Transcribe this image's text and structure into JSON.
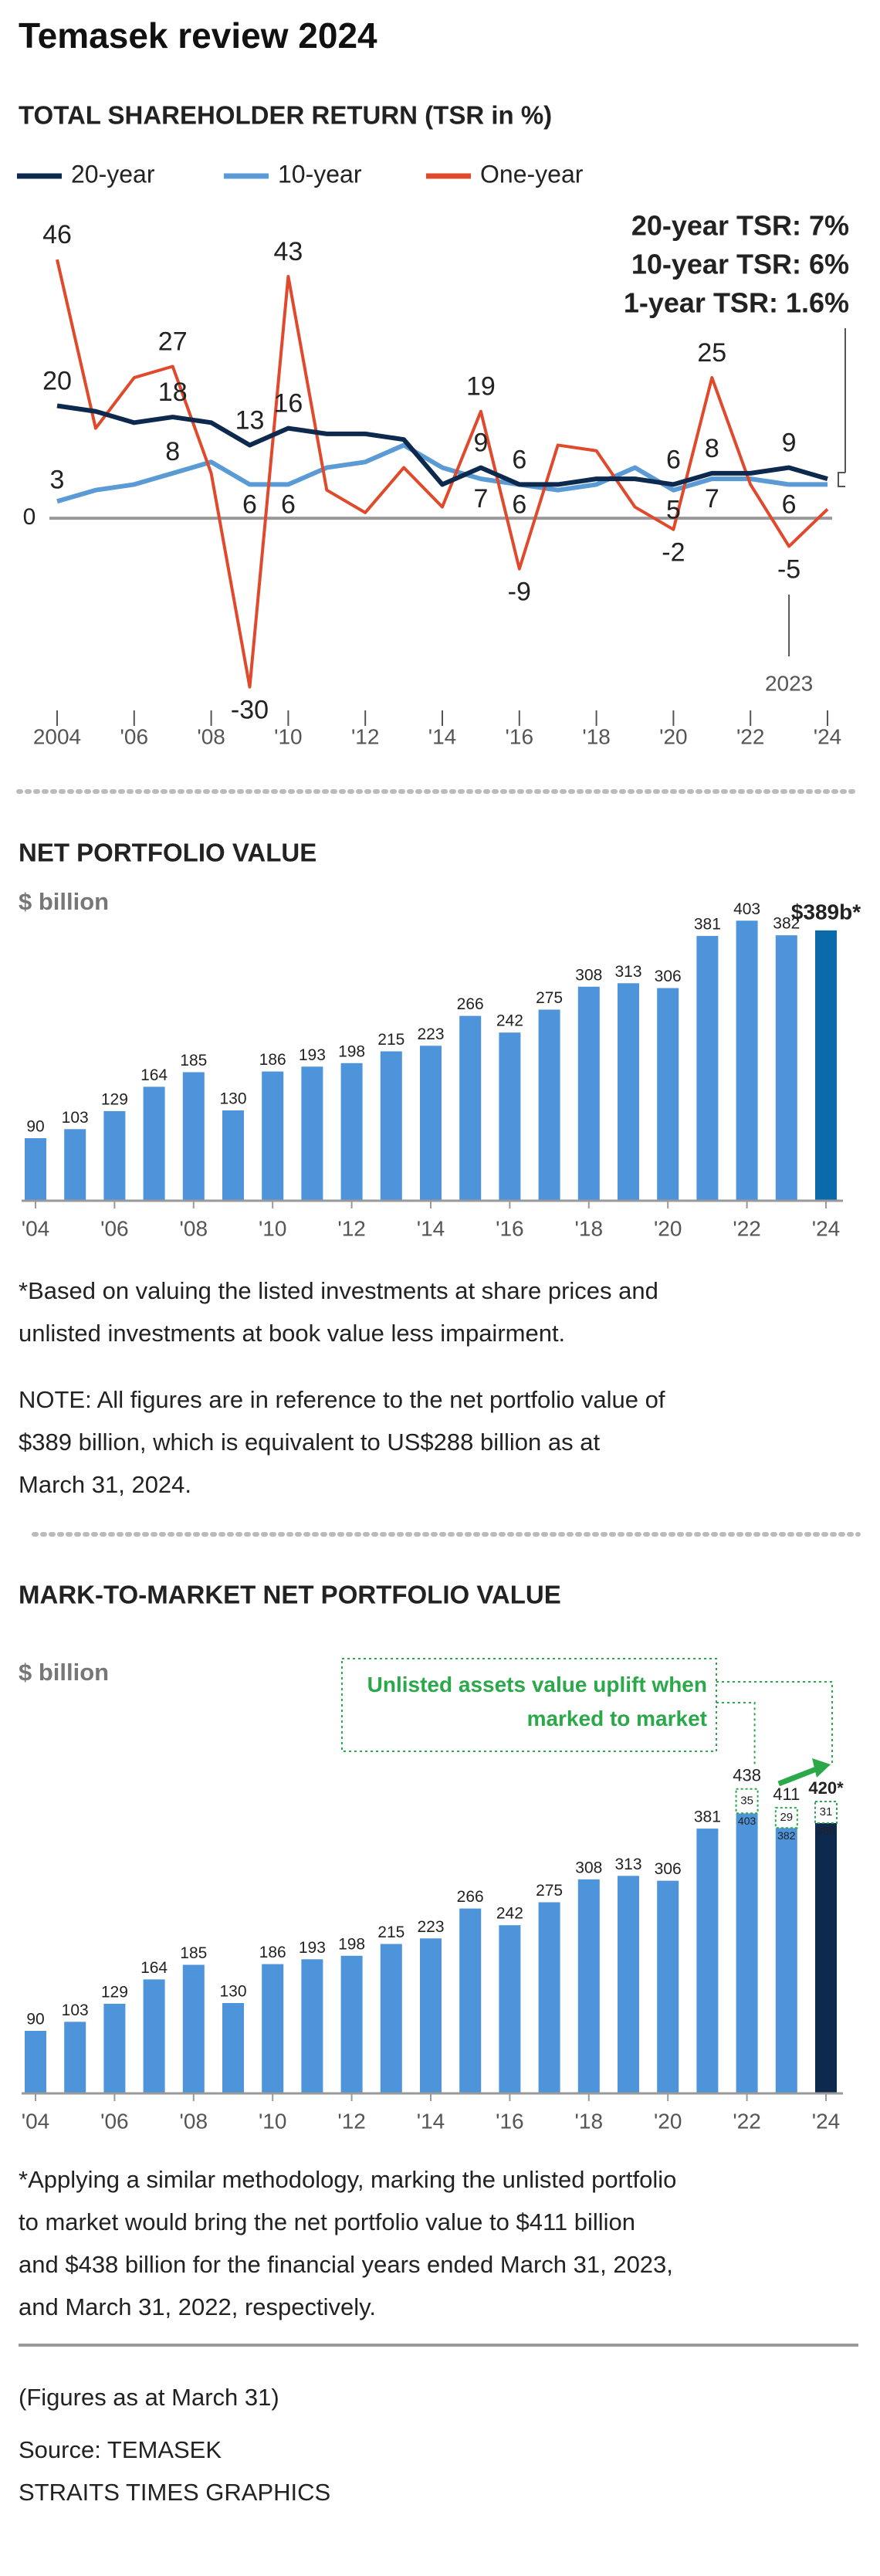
{
  "title": "Temasek review 2024",
  "chart_data": [
    {
      "type": "line",
      "title": "TOTAL SHAREHOLDER RETURN (TSR in %)",
      "x": [
        2004,
        2005,
        2006,
        2007,
        2008,
        2009,
        2010,
        2011,
        2012,
        2013,
        2014,
        2015,
        2016,
        2017,
        2018,
        2019,
        2020,
        2021,
        2022,
        2023,
        2024
      ],
      "series": [
        {
          "name": "20-year",
          "color": "#0d2a4e",
          "values": [
            20,
            19,
            17,
            18,
            17,
            13,
            16,
            15,
            15,
            14,
            6,
            9,
            6,
            6,
            7,
            7,
            6,
            8,
            8,
            9,
            7
          ],
          "value_labels": [
            "20",
            null,
            null,
            "18",
            null,
            "13",
            "16",
            null,
            null,
            null,
            null,
            "9",
            "6",
            null,
            null,
            null,
            "6",
            "8",
            null,
            "9",
            null
          ]
        },
        {
          "name": "10-year",
          "color": "#5b9bd5",
          "values": [
            3,
            5,
            6,
            8,
            10,
            6,
            6,
            9,
            10,
            13,
            9,
            7,
            6,
            5,
            6,
            9,
            5,
            7,
            7,
            6,
            6
          ],
          "value_labels": [
            "3",
            null,
            null,
            "8",
            null,
            "6",
            "6",
            null,
            null,
            null,
            null,
            "7",
            "6",
            null,
            null,
            null,
            "5",
            "7",
            null,
            "6",
            null
          ]
        },
        {
          "name": "One-year",
          "color": "#e0492c",
          "values": [
            46,
            16,
            25,
            27,
            8,
            -30,
            43,
            5,
            1,
            9,
            2,
            19,
            -9,
            13,
            12,
            2,
            -2,
            25,
            6,
            -5,
            1.6
          ],
          "value_labels": [
            "46",
            null,
            null,
            "27",
            null,
            "-30",
            "43",
            null,
            null,
            null,
            null,
            "19",
            "-9",
            null,
            null,
            null,
            "-2",
            "25",
            null,
            "-5",
            null
          ]
        }
      ],
      "annotations": [
        {
          "text": "20-year TSR: 7%",
          "color": "#0d2a4e"
        },
        {
          "text": "10-year TSR: 6%",
          "color": "#5b9bd5"
        },
        {
          "text": "1-year TSR: 1.6%",
          "color": "#e0492c"
        }
      ],
      "marker": {
        "value": 2023,
        "label": "2023"
      },
      "xlim": [
        2004,
        2024
      ],
      "xticks": [
        {
          "value": 2004,
          "label": "2004"
        },
        {
          "value": 2006,
          "label": "'06"
        },
        {
          "value": 2008,
          "label": "'08"
        },
        {
          "value": 2010,
          "label": "'10"
        },
        {
          "value": 2012,
          "label": "'12"
        },
        {
          "value": 2014,
          "label": "'14"
        },
        {
          "value": 2016,
          "label": "'16"
        },
        {
          "value": 2018,
          "label": "'18"
        },
        {
          "value": 2020,
          "label": "'20"
        },
        {
          "value": 2022,
          "label": "'22"
        },
        {
          "value": 2024,
          "label": "'24"
        }
      ],
      "ylim": [
        -35,
        50
      ],
      "yticks": [
        0
      ]
    },
    {
      "type": "bar",
      "title": "NET PORTFOLIO VALUE",
      "unit_label": "$ billion",
      "x": [
        2004,
        2005,
        2006,
        2007,
        2008,
        2009,
        2010,
        2011,
        2012,
        2013,
        2014,
        2015,
        2016,
        2017,
        2018,
        2019,
        2020,
        2021,
        2022,
        2023,
        2024
      ],
      "values": [
        90,
        103,
        129,
        164,
        185,
        130,
        186,
        193,
        198,
        215,
        223,
        266,
        242,
        275,
        308,
        313,
        306,
        381,
        403,
        382,
        389
      ],
      "value_labels": [
        "90",
        "103",
        "129",
        "164",
        "185",
        "130",
        "186",
        "193",
        "198",
        "215",
        "223",
        "266",
        "242",
        "275",
        "308",
        "313",
        "306",
        "381",
        "403",
        "382",
        "$389b*"
      ],
      "colors": [
        "#4d94db",
        "#4d94db",
        "#4d94db",
        "#4d94db",
        "#4d94db",
        "#4d94db",
        "#4d94db",
        "#4d94db",
        "#4d94db",
        "#4d94db",
        "#4d94db",
        "#4d94db",
        "#4d94db",
        "#4d94db",
        "#4d94db",
        "#4d94db",
        "#4d94db",
        "#4d94db",
        "#4d94db",
        "#4d94db",
        "#0b6aa9"
      ],
      "xlim": [
        2004,
        2024
      ],
      "xticks": [
        {
          "value": 2004,
          "label": "'04"
        },
        {
          "value": 2006,
          "label": "'06"
        },
        {
          "value": 2008,
          "label": "'08"
        },
        {
          "value": 2010,
          "label": "'10"
        },
        {
          "value": 2012,
          "label": "'12"
        },
        {
          "value": 2014,
          "label": "'14"
        },
        {
          "value": 2016,
          "label": "'16"
        },
        {
          "value": 2018,
          "label": "'18"
        },
        {
          "value": 2020,
          "label": "'20"
        },
        {
          "value": 2022,
          "label": "'22"
        },
        {
          "value": 2024,
          "label": "'24"
        }
      ],
      "ylim": [
        0,
        420
      ],
      "footnote": [
        "*Based on valuing the listed investments at share prices and",
        "unlisted investments at book value less impairment."
      ],
      "note": [
        "NOTE: All figures are in reference to the net portfolio value of",
        "$389 billion, which is equivalent to US$288 billion as at",
        "March 31, 2024."
      ]
    },
    {
      "type": "stacked-bar",
      "title": "MARK-TO-MARKET NET PORTFOLIO VALUE",
      "unit_label": "$ billion",
      "x": [
        2004,
        2005,
        2006,
        2007,
        2008,
        2009,
        2010,
        2011,
        2012,
        2013,
        2014,
        2015,
        2016,
        2017,
        2018,
        2019,
        2020,
        2021,
        2022,
        2023,
        2024
      ],
      "series": [
        {
          "values": [
            90,
            103,
            129,
            164,
            185,
            130,
            186,
            193,
            198,
            215,
            223,
            266,
            242,
            275,
            308,
            313,
            306,
            381,
            403,
            382,
            389
          ],
          "colors": [
            "#4d94db",
            "#4d94db",
            "#4d94db",
            "#4d94db",
            "#4d94db",
            "#4d94db",
            "#4d94db",
            "#4d94db",
            "#4d94db",
            "#4d94db",
            "#4d94db",
            "#4d94db",
            "#4d94db",
            "#4d94db",
            "#4d94db",
            "#4d94db",
            "#4d94db",
            "#4d94db",
            "#4d94db",
            "#4d94db",
            "#0d2a4e"
          ]
        },
        {
          "name": "Unlisted assets value uplift when marked to market",
          "color": "#2aa84a",
          "values": [
            null,
            null,
            null,
            null,
            null,
            null,
            null,
            null,
            null,
            null,
            null,
            null,
            null,
            null,
            null,
            null,
            null,
            null,
            35,
            29,
            31
          ],
          "total_labels": [
            null,
            null,
            null,
            null,
            null,
            null,
            null,
            null,
            null,
            null,
            null,
            null,
            null,
            null,
            null,
            null,
            null,
            null,
            "438",
            "411",
            "420*"
          ]
        }
      ],
      "xlim": [
        2004,
        2024
      ],
      "xticks": [
        {
          "value": 2004,
          "label": "'04"
        },
        {
          "value": 2006,
          "label": "'06"
        },
        {
          "value": 2008,
          "label": "'08"
        },
        {
          "value": 2010,
          "label": "'10"
        },
        {
          "value": 2012,
          "label": "'12"
        },
        {
          "value": 2014,
          "label": "'14"
        },
        {
          "value": 2016,
          "label": "'16"
        },
        {
          "value": 2018,
          "label": "'18"
        },
        {
          "value": 2020,
          "label": "'20"
        },
        {
          "value": 2022,
          "label": "'22"
        },
        {
          "value": 2024,
          "label": "'24"
        }
      ],
      "ylim": [
        0,
        450
      ],
      "footnote": [
        "*Applying a similar methodology, marking the unlisted portfolio",
        "to market would bring the net portfolio value to $411 billion",
        "and $438 billion for the financial years ended March 31, 2023,",
        "and March 31, 2022, respectively."
      ]
    }
  ],
  "figures_note": "(Figures as at March 31)",
  "source": [
    "Source: TEMASEK",
    "STRAITS TIMES GRAPHICS"
  ]
}
